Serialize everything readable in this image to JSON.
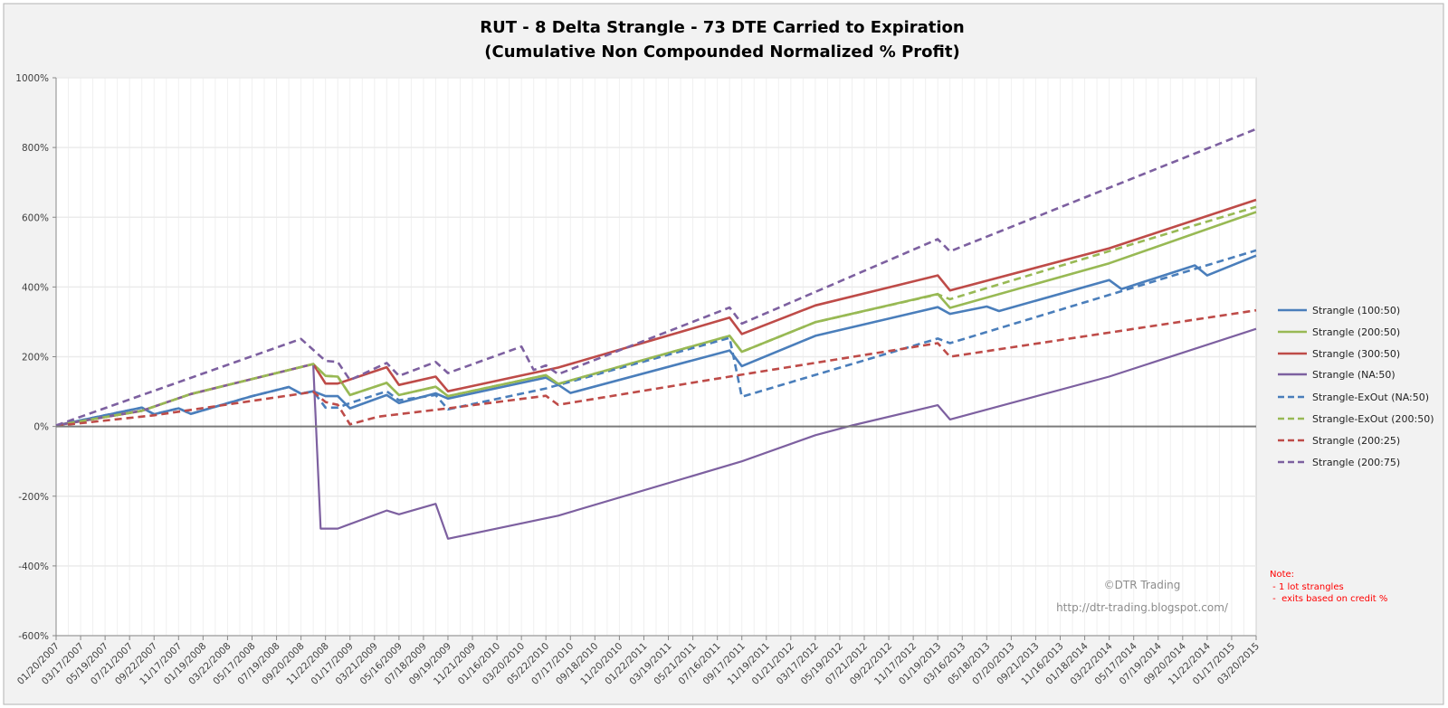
{
  "chart_data": {
    "type": "line",
    "title": "RUT - 8 Delta Strangle - 73 DTE Carried to Expiration",
    "subtitle": "(Cumulative Non Compounded Normalized % Profit)",
    "xlabel": "",
    "ylabel": "",
    "x_unit": "months since 01/2007",
    "xlim": [
      0,
      98
    ],
    "ylim": [
      -600,
      1000
    ],
    "y_ticks": [
      1000,
      800,
      600,
      400,
      200,
      0,
      -200,
      -400,
      -600
    ],
    "y_tick_labels": [
      "1000%",
      "800%",
      "600%",
      "400%",
      "200%",
      "0%",
      "-200%",
      "-400%",
      "-600%"
    ],
    "x_tick_labels": [
      "01/20/2007",
      "03/17/2007",
      "05/19/2007",
      "07/21/2007",
      "09/22/2007",
      "11/17/2007",
      "01/19/2008",
      "03/22/2008",
      "05/17/2008",
      "07/19/2008",
      "09/20/2008",
      "11/22/2008",
      "01/17/2009",
      "03/21/2009",
      "05/16/2009",
      "07/18/2009",
      "09/19/2009",
      "11/21/2009",
      "01/16/2010",
      "03/20/2010",
      "05/22/2010",
      "07/17/2010",
      "09/18/2010",
      "11/20/2010",
      "01/22/2011",
      "03/19/2011",
      "05/21/2011",
      "07/16/2011",
      "09/17/2011",
      "11/19/2011",
      "01/21/2012",
      "03/17/2012",
      "05/19/2012",
      "07/21/2012",
      "09/22/2012",
      "11/17/2012",
      "01/19/2013",
      "03/16/2013",
      "05/18/2013",
      "07/20/2013",
      "09/21/2013",
      "11/16/2013",
      "01/18/2014",
      "03/22/2014",
      "05/17/2014",
      "07/19/2014",
      "09/20/2014",
      "11/22/2014",
      "01/17/2015",
      "03/20/2015"
    ],
    "grid": true,
    "legend_position": "right",
    "series": [
      {
        "name": "Strangle  (100:50)",
        "color": "#4a7ebb",
        "dash": false,
        "points": [
          [
            0,
            3
          ],
          [
            7,
            54
          ],
          [
            8,
            35
          ],
          [
            10,
            52
          ],
          [
            11,
            36
          ],
          [
            16,
            87
          ],
          [
            19,
            113
          ],
          [
            20,
            94
          ],
          [
            21,
            101
          ],
          [
            22,
            87
          ],
          [
            23,
            87
          ],
          [
            24,
            52
          ],
          [
            27,
            90
          ],
          [
            28,
            67
          ],
          [
            31,
            95
          ],
          [
            32,
            80
          ],
          [
            40,
            140
          ],
          [
            41,
            120
          ],
          [
            42,
            96
          ],
          [
            55,
            218
          ],
          [
            56,
            173
          ],
          [
            62,
            260
          ],
          [
            72,
            342
          ],
          [
            73,
            323
          ],
          [
            76,
            344
          ],
          [
            77,
            331
          ],
          [
            86,
            420
          ],
          [
            87,
            394
          ],
          [
            93,
            462
          ],
          [
            94,
            433
          ],
          [
            98,
            490
          ]
        ]
      },
      {
        "name": "Strangle  (200:50)",
        "color": "#98b954",
        "dash": false,
        "points": [
          [
            0,
            3
          ],
          [
            7,
            45
          ],
          [
            11,
            93
          ],
          [
            21,
            179
          ],
          [
            22,
            145
          ],
          [
            23,
            143
          ],
          [
            24,
            90
          ],
          [
            27,
            125
          ],
          [
            28,
            90
          ],
          [
            31,
            114
          ],
          [
            32,
            87
          ],
          [
            40,
            147
          ],
          [
            41,
            122
          ],
          [
            55,
            260
          ],
          [
            56,
            214
          ],
          [
            62,
            299
          ],
          [
            72,
            380
          ],
          [
            73,
            340
          ],
          [
            86,
            468
          ],
          [
            98,
            615
          ]
        ]
      },
      {
        "name": "Strangle  (300:50)",
        "color": "#be4b48",
        "dash": false,
        "points": [
          [
            0,
            3
          ],
          [
            7,
            45
          ],
          [
            11,
            93
          ],
          [
            21,
            179
          ],
          [
            22,
            123
          ],
          [
            23,
            123
          ],
          [
            27,
            170
          ],
          [
            28,
            119
          ],
          [
            31,
            143
          ],
          [
            32,
            101
          ],
          [
            41,
            169
          ],
          [
            55,
            312
          ],
          [
            56,
            265
          ],
          [
            62,
            347
          ],
          [
            72,
            433
          ],
          [
            73,
            390
          ],
          [
            86,
            511
          ],
          [
            98,
            650
          ]
        ]
      },
      {
        "name": "Strangle  (NA:50)",
        "color": "#7d60a0",
        "dash": false,
        "points": [
          [
            0,
            3
          ],
          [
            7,
            45
          ],
          [
            11,
            93
          ],
          [
            21,
            179
          ],
          [
            21.6,
            -293
          ],
          [
            23,
            -293
          ],
          [
            27,
            -241
          ],
          [
            28,
            -252
          ],
          [
            31,
            -222
          ],
          [
            32,
            -322
          ],
          [
            41,
            -256
          ],
          [
            56,
            -100
          ],
          [
            62,
            -25
          ],
          [
            65,
            3
          ],
          [
            72,
            61
          ],
          [
            73,
            20
          ],
          [
            86,
            143
          ],
          [
            98,
            280
          ]
        ]
      },
      {
        "name": "Strangle-ExOut  (NA:50)",
        "color": "#4a7ebb",
        "dash": true,
        "points": [
          [
            0,
            3
          ],
          [
            7,
            54
          ],
          [
            8,
            35
          ],
          [
            10,
            52
          ],
          [
            11,
            36
          ],
          [
            16,
            87
          ],
          [
            19,
            113
          ],
          [
            20,
            94
          ],
          [
            21,
            101
          ],
          [
            22,
            54
          ],
          [
            23,
            54
          ],
          [
            24,
            67
          ],
          [
            27,
            101
          ],
          [
            28,
            75
          ],
          [
            31,
            90
          ],
          [
            32,
            49
          ],
          [
            40,
            109
          ],
          [
            55,
            254
          ],
          [
            56,
            85
          ],
          [
            72,
            252
          ],
          [
            73,
            239
          ],
          [
            98,
            505
          ]
        ]
      },
      {
        "name": "Strangle-ExOut  (200:50)",
        "color": "#98b954",
        "dash": true,
        "points": [
          [
            0,
            3
          ],
          [
            7,
            45
          ],
          [
            11,
            93
          ],
          [
            21,
            179
          ],
          [
            22,
            145
          ],
          [
            23,
            143
          ],
          [
            24,
            90
          ],
          [
            27,
            125
          ],
          [
            28,
            90
          ],
          [
            31,
            114
          ],
          [
            32,
            87
          ],
          [
            40,
            147
          ],
          [
            41,
            122
          ],
          [
            55,
            260
          ],
          [
            56,
            214
          ],
          [
            62,
            299
          ],
          [
            72,
            379
          ],
          [
            73,
            365
          ],
          [
            98,
            630
          ]
        ]
      },
      {
        "name": "Strangle  (200:25)",
        "color": "#be4b48",
        "dash": true,
        "points": [
          [
            0,
            2
          ],
          [
            8,
            32
          ],
          [
            21,
            99
          ],
          [
            22,
            70
          ],
          [
            23,
            62
          ],
          [
            24,
            6
          ],
          [
            26.3,
            28
          ],
          [
            32,
            52
          ],
          [
            40,
            88
          ],
          [
            41,
            62
          ],
          [
            55,
            143
          ],
          [
            72,
            239
          ],
          [
            73,
            200
          ],
          [
            98,
            333
          ]
        ]
      },
      {
        "name": "Strangle  (200:75)",
        "color": "#7d60a0",
        "dash": true,
        "points": [
          [
            0,
            3
          ],
          [
            20,
            251
          ],
          [
            22,
            188
          ],
          [
            23,
            185
          ],
          [
            24,
            133
          ],
          [
            27,
            182
          ],
          [
            28,
            145
          ],
          [
            31,
            185
          ],
          [
            32,
            153
          ],
          [
            38,
            229
          ],
          [
            39,
            162
          ],
          [
            40,
            175
          ],
          [
            41,
            150
          ],
          [
            55,
            341
          ],
          [
            56,
            295
          ],
          [
            72,
            537
          ],
          [
            73,
            502
          ],
          [
            98,
            853
          ]
        ]
      }
    ],
    "annotations": {
      "copyright": "©DTR Trading",
      "url": "http://dtr-trading.blogspot.com/",
      "note_title": "Note:",
      "note_lines": [
        " - 1 lot strangles",
        " -  exits based on credit %"
      ]
    }
  }
}
